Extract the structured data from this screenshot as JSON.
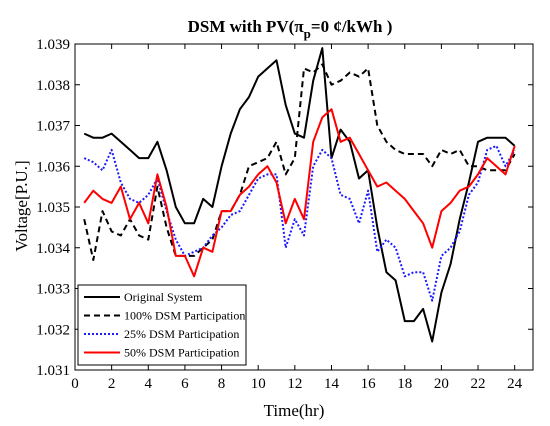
{
  "chart_data": {
    "type": "line",
    "title_prefix": "DSM with PV(π",
    "title_subscript": "p",
    "title_suffix": "=0 ¢/kWh )",
    "xlabel": "Time(hr)",
    "ylabel": "Voltage[P.U.]",
    "xlim": [
      0,
      25
    ],
    "ylim": [
      1.031,
      1.039
    ],
    "xticks": [
      0,
      2,
      4,
      6,
      8,
      10,
      12,
      14,
      16,
      18,
      20,
      22,
      24
    ],
    "yticks": [
      1.031,
      1.032,
      1.033,
      1.034,
      1.035,
      1.036,
      1.037,
      1.038,
      1.039
    ],
    "legend_position": "bottom-left",
    "grid": false,
    "x": [
      0.5,
      1,
      1.5,
      2,
      2.5,
      3,
      3.5,
      4,
      4.5,
      5,
      5.5,
      6,
      6.5,
      7,
      7.5,
      8,
      8.5,
      9,
      9.5,
      10,
      10.5,
      11,
      11.5,
      12,
      12.5,
      13,
      13.5,
      14,
      14.5,
      15,
      15.5,
      16,
      16.5,
      17,
      17.5,
      18,
      18.5,
      19,
      19.5,
      20,
      20.5,
      21,
      21.5,
      22,
      22.5,
      23,
      23.5,
      24
    ],
    "series": [
      {
        "name": "Original System",
        "color": "#000000",
        "dash": "solid",
        "values": [
          1.0368,
          1.0367,
          1.0367,
          1.0368,
          1.0366,
          1.0364,
          1.0362,
          1.0362,
          1.0366,
          1.0359,
          1.035,
          1.0346,
          1.0346,
          1.0352,
          1.035,
          1.036,
          1.0368,
          1.0374,
          1.0377,
          1.0382,
          1.0384,
          1.0386,
          1.0375,
          1.0368,
          1.0367,
          1.0381,
          1.0389,
          1.0362,
          1.0369,
          1.0366,
          1.0357,
          1.0359,
          1.0345,
          1.0334,
          1.0332,
          1.0322,
          1.0322,
          1.0325,
          1.0317,
          1.0329,
          1.0336,
          1.0347,
          1.0356,
          1.0366,
          1.0367,
          1.0367,
          1.0367,
          1.0365
        ]
      },
      {
        "name": "100% DSM Participation",
        "color": "#000000",
        "dash": "dashed",
        "values": [
          1.0347,
          1.0337,
          1.0349,
          1.0344,
          1.0343,
          1.0347,
          1.0343,
          1.0342,
          1.0355,
          1.0345,
          1.0338,
          1.0338,
          1.0338,
          1.034,
          1.0342,
          1.0349,
          1.0349,
          1.0353,
          1.036,
          1.0361,
          1.0362,
          1.0366,
          1.0358,
          1.0362,
          1.0384,
          1.0383,
          1.0385,
          1.038,
          1.0381,
          1.0383,
          1.0382,
          1.0384,
          1.037,
          1.0366,
          1.0364,
          1.0363,
          1.0363,
          1.0363,
          1.036,
          1.0364,
          1.0363,
          1.0364,
          1.036,
          1.036,
          1.0359,
          1.0359,
          1.0359,
          1.0363
        ]
      },
      {
        "name": "25% DSM Participation",
        "color": "#1a1aff",
        "dash": "dotted",
        "values": [
          1.0362,
          1.0361,
          1.0359,
          1.0364,
          1.0356,
          1.0352,
          1.0351,
          1.0353,
          1.0357,
          1.0349,
          1.0342,
          1.0338,
          1.0339,
          1.034,
          1.0343,
          1.0345,
          1.0348,
          1.0349,
          1.0353,
          1.0357,
          1.0358,
          1.0358,
          1.034,
          1.0347,
          1.0343,
          1.036,
          1.0364,
          1.0362,
          1.0353,
          1.0352,
          1.0346,
          1.0354,
          1.0339,
          1.0342,
          1.034,
          1.0333,
          1.0334,
          1.0334,
          1.0327,
          1.0338,
          1.034,
          1.0344,
          1.0353,
          1.0356,
          1.0364,
          1.0365,
          1.036,
          1.0364
        ]
      },
      {
        "name": "50% DSM Participation",
        "color": "#ff0000",
        "dash": "solid",
        "values": [
          1.0351,
          1.0354,
          1.0352,
          1.0351,
          1.0355,
          1.0347,
          1.0351,
          1.0346,
          1.0358,
          1.035,
          1.0338,
          1.0338,
          1.0333,
          1.034,
          1.0339,
          1.0349,
          1.0349,
          1.0353,
          1.0355,
          1.0358,
          1.036,
          1.0356,
          1.0346,
          1.0352,
          1.0347,
          1.0366,
          1.0372,
          1.0374,
          1.0366,
          1.0367,
          1.0363,
          1.0359,
          1.0355,
          1.0356,
          1.0354,
          1.0352,
          1.0349,
          1.0346,
          1.034,
          1.0349,
          1.0351,
          1.0354,
          1.0355,
          1.0358,
          1.0362,
          1.036,
          1.0358,
          1.0365
        ]
      }
    ]
  }
}
